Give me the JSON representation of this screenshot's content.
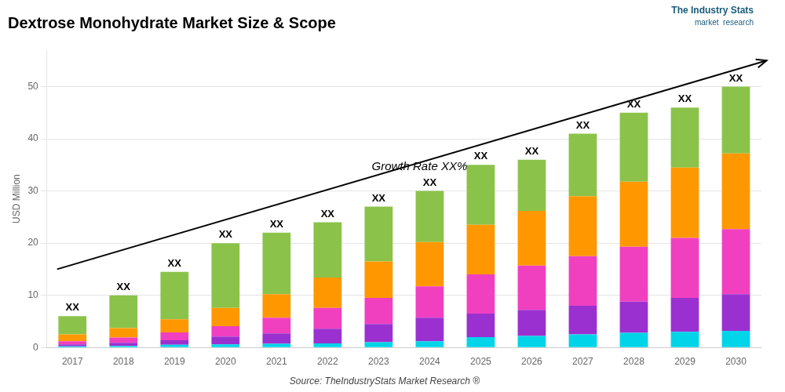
{
  "chart_data": {
    "type": "bar",
    "title": "Dextrose Monohydrate Market Size & Scope",
    "ylabel": "USD Million",
    "source": "Source: TheIndustryStats Market Research ®",
    "categories": [
      "2017",
      "2018",
      "2019",
      "2020",
      "2021",
      "2022",
      "2023",
      "2024",
      "2025",
      "2026",
      "2027",
      "2028",
      "2029",
      "2030"
    ],
    "series": [
      {
        "color": "#00d4e8",
        "values": [
          0.2,
          0.3,
          0.5,
          0.6,
          0.7,
          0.8,
          1.0,
          1.2,
          2.0,
          2.2,
          2.5,
          2.8,
          3.0,
          3.2
        ]
      },
      {
        "color": "#9b30d0",
        "values": [
          0.4,
          0.6,
          0.9,
          1.5,
          2.0,
          2.8,
          3.5,
          4.5,
          4.5,
          5.0,
          5.5,
          6.0,
          6.5,
          7.0
        ]
      },
      {
        "color": "#f040c0",
        "values": [
          0.6,
          1.0,
          1.5,
          2.0,
          3.0,
          4.0,
          5.0,
          6.0,
          7.5,
          8.5,
          9.5,
          10.5,
          11.5,
          12.5
        ]
      },
      {
        "color": "#ff9800",
        "values": [
          1.3,
          1.8,
          2.5,
          3.5,
          4.5,
          5.8,
          7.0,
          8.5,
          9.5,
          10.5,
          11.5,
          12.5,
          13.5,
          14.5
        ]
      },
      {
        "color": "#8bc34a",
        "values": [
          3.5,
          6.3,
          9.1,
          12.4,
          11.8,
          10.6,
          10.5,
          9.8,
          11.5,
          9.8,
          12.0,
          13.2,
          11.5,
          12.8
        ]
      }
    ],
    "stacked": true,
    "ylim": [
      0,
      57
    ],
    "yticks": [
      0,
      10,
      20,
      30,
      40,
      50
    ],
    "grid": true,
    "annotations": [
      {
        "text": "XX",
        "x": "2017",
        "y": 6
      },
      {
        "text": "XX",
        "x": "2018",
        "y": 10
      },
      {
        "text": "XX",
        "x": "2019",
        "y": 14.5
      },
      {
        "text": "XX",
        "x": "2020",
        "y": 20
      },
      {
        "text": "XX",
        "x": "2021",
        "y": 22
      },
      {
        "text": "XX",
        "x": "2022",
        "y": 24
      },
      {
        "text": "XX",
        "x": "2023",
        "y": 27
      },
      {
        "text": "XX",
        "x": "2024",
        "y": 30
      },
      {
        "text": "XX",
        "x": "2025",
        "y": 35
      },
      {
        "text": "XX",
        "x": "2026",
        "y": 36
      },
      {
        "text": "XX",
        "x": "2027",
        "y": 41
      },
      {
        "text": "XX",
        "x": "2028",
        "y": 45
      },
      {
        "text": "XX",
        "x": "2029",
        "y": 46
      },
      {
        "text": "XX",
        "x": "2030",
        "y": 50
      },
      {
        "type": "arrow",
        "x": [
          -0.3,
          13.6
        ],
        "y": [
          15.0,
          55.0
        ]
      },
      {
        "text": "Growth Rate XX%",
        "x": 6.8,
        "y": 33.5
      },
      {
        "text": "The Industry Stats",
        "color": "#1a5c7a"
      },
      {
        "text": "market  research",
        "color": "#1a5c7a"
      }
    ]
  }
}
